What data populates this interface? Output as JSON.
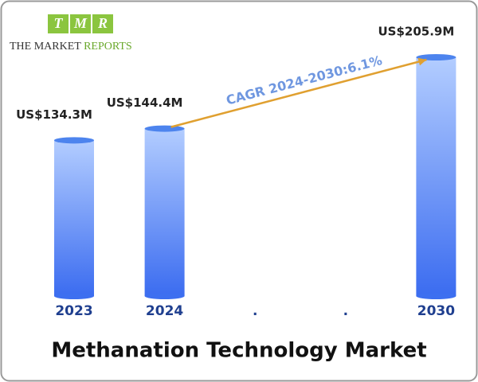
{
  "logo": {
    "letters": [
      "T",
      "M",
      "R"
    ],
    "name_dark": "THE MARKET",
    "name_green": "REPORTS"
  },
  "chart_data": {
    "type": "bar",
    "title": "Methanation Technology Market",
    "categories": [
      "2023",
      "2024",
      ".",
      ".",
      "2030"
    ],
    "values": [
      134.3,
      144.4,
      null,
      null,
      205.9
    ],
    "value_labels": [
      "US$134.3M",
      "US$144.4M",
      null,
      null,
      "US$205.9M"
    ],
    "annotation": "CAGR 2024-2030:6.1%",
    "color": "#3d6ff0"
  }
}
